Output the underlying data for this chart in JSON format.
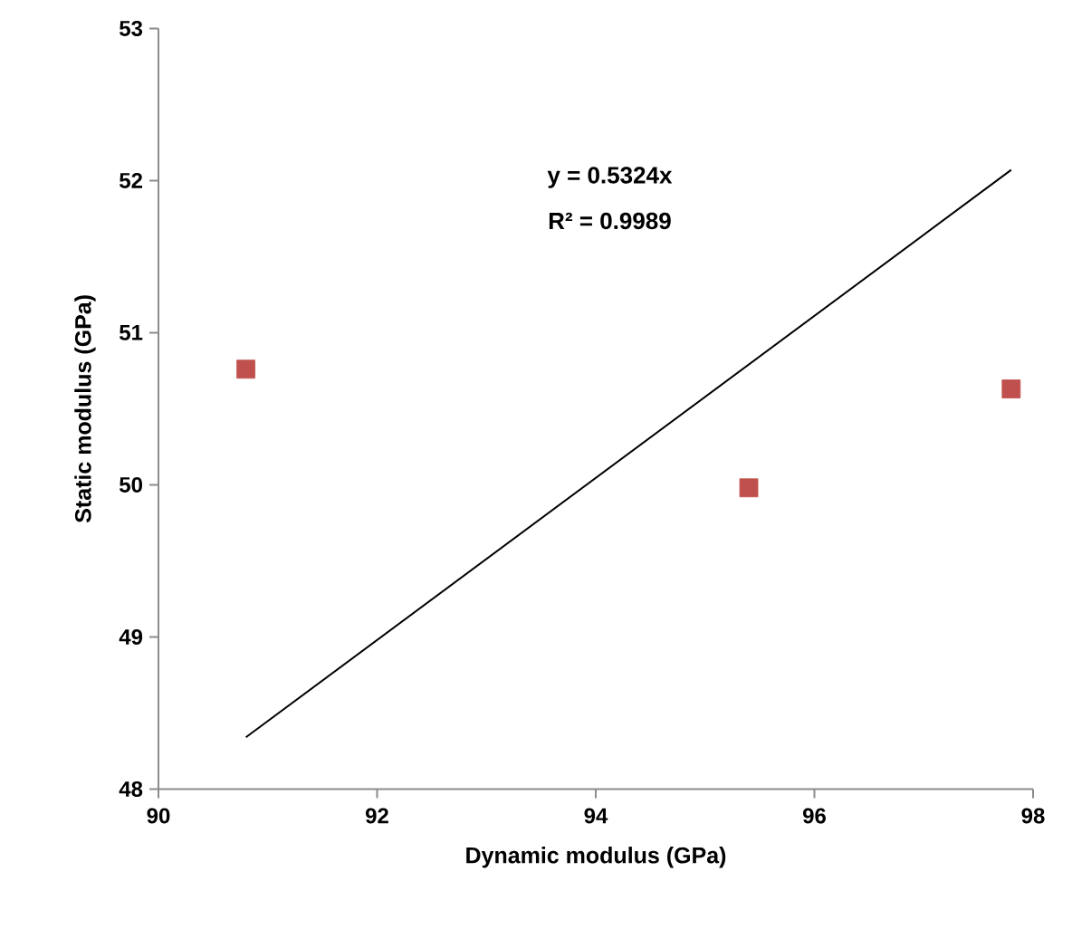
{
  "chart_data": {
    "type": "scatter",
    "xlabel": "Dynamic modulus (GPa)",
    "ylabel": "Static modulus (GPa)",
    "annotations": [
      "y = 0.5324x",
      "R² = 0.9989"
    ],
    "x": [
      90.8,
      95.4,
      97.8
    ],
    "xlim": [
      90,
      98
    ],
    "ylim": [
      48,
      53
    ],
    "xticks": [
      90,
      92,
      94,
      96,
      98
    ],
    "yticks": [
      48,
      49,
      50,
      51,
      52,
      53
    ],
    "marker": "square",
    "series": [
      {
        "color": "#c0504d",
        "values": [
          50.76,
          49.98,
          50.63
        ]
      },
      {
        "type": "line",
        "color": "#000000",
        "x": [
          90.8,
          97.8
        ],
        "values": [
          48.34,
          52.07
        ],
        "marker": "none",
        "line_style": "solid"
      }
    ]
  }
}
